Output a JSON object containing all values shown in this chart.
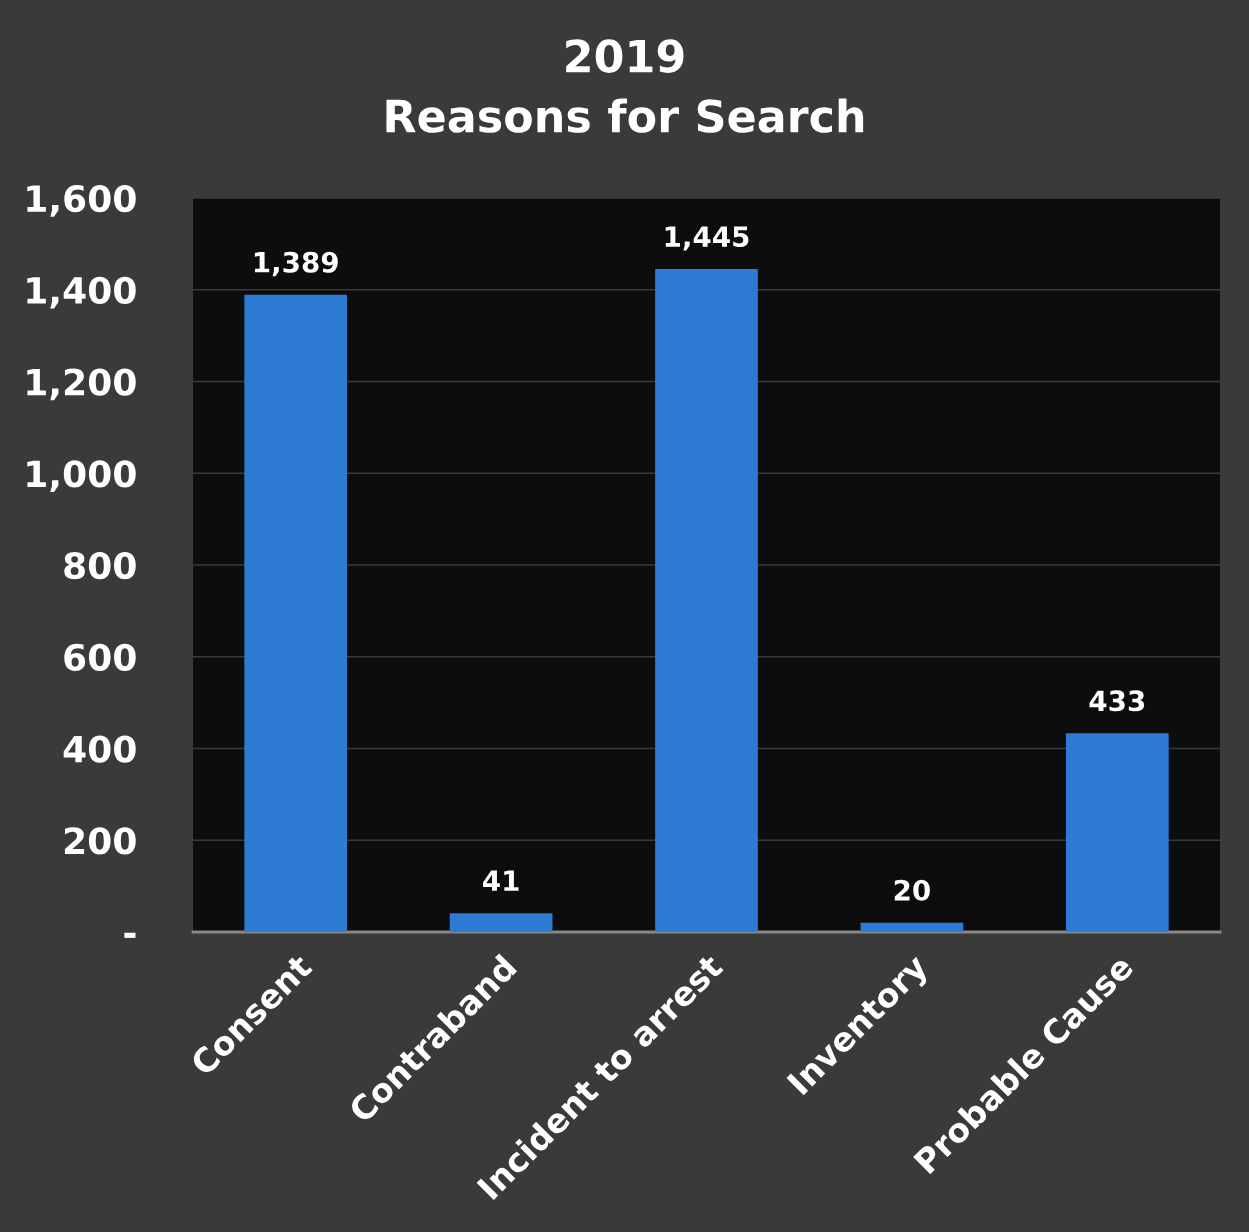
{
  "chart_data": {
    "type": "bar",
    "title": "2019\nReasons for Search",
    "categories": [
      "Consent",
      "Contraband",
      "Incident to arrest",
      "Inventory",
      "Probable Cause"
    ],
    "values": [
      1389,
      41,
      1445,
      20,
      433
    ],
    "value_labels": [
      "1,389",
      "41",
      "1,445",
      "20",
      "433"
    ],
    "color": "#2e7bd6",
    "ylim": [
      0,
      1600
    ],
    "yticks": [
      {
        "value": 0,
        "label": "-"
      },
      {
        "value": 200,
        "label": "200"
      },
      {
        "value": 400,
        "label": "400"
      },
      {
        "value": 600,
        "label": "600"
      },
      {
        "value": 800,
        "label": "800"
      },
      {
        "value": 1000,
        "label": "1,000"
      },
      {
        "value": 1200,
        "label": "1,200"
      },
      {
        "value": 1400,
        "label": "1,400"
      },
      {
        "value": 1600,
        "label": "1,600"
      }
    ],
    "grid": "y"
  }
}
